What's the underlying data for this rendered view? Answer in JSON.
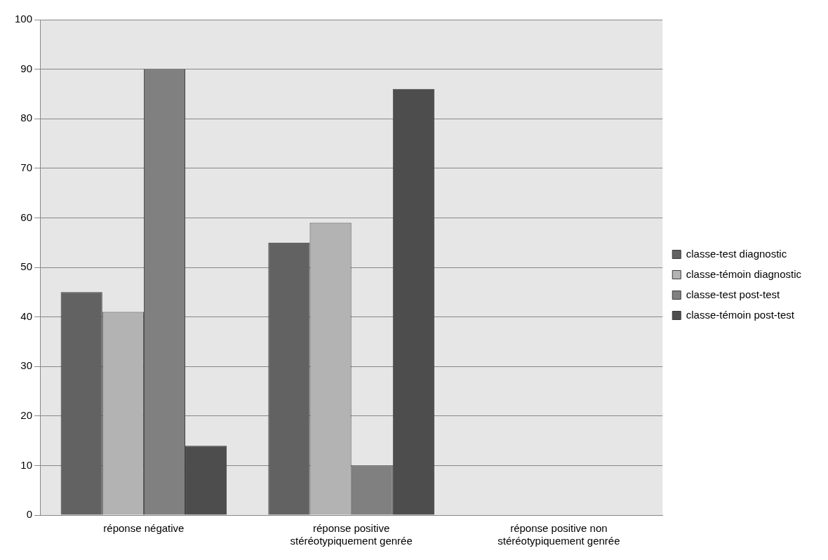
{
  "chart_data": {
    "type": "bar",
    "categories": [
      "réponse négative",
      "réponse positive stéréotypiquement genrée",
      "réponse positive non stéréotypiquement genrée"
    ],
    "series": [
      {
        "name": "classe-test diagnostic",
        "color": "#626262",
        "values": [
          45,
          55,
          0
        ]
      },
      {
        "name": "classe-témoin diagnostic",
        "color": "#b3b3b3",
        "values": [
          41,
          59,
          0
        ]
      },
      {
        "name": "classe-test post-test",
        "color": "#808080",
        "values": [
          90,
          10,
          0
        ]
      },
      {
        "name": "classe-témoin post-test",
        "color": "#4d4d4d",
        "values": [
          14,
          86,
          0
        ]
      }
    ],
    "ylim": [
      0,
      100
    ],
    "yticks": [
      0,
      10,
      20,
      30,
      40,
      50,
      60,
      70,
      80,
      90,
      100
    ],
    "grid": "y",
    "legend": "right"
  }
}
